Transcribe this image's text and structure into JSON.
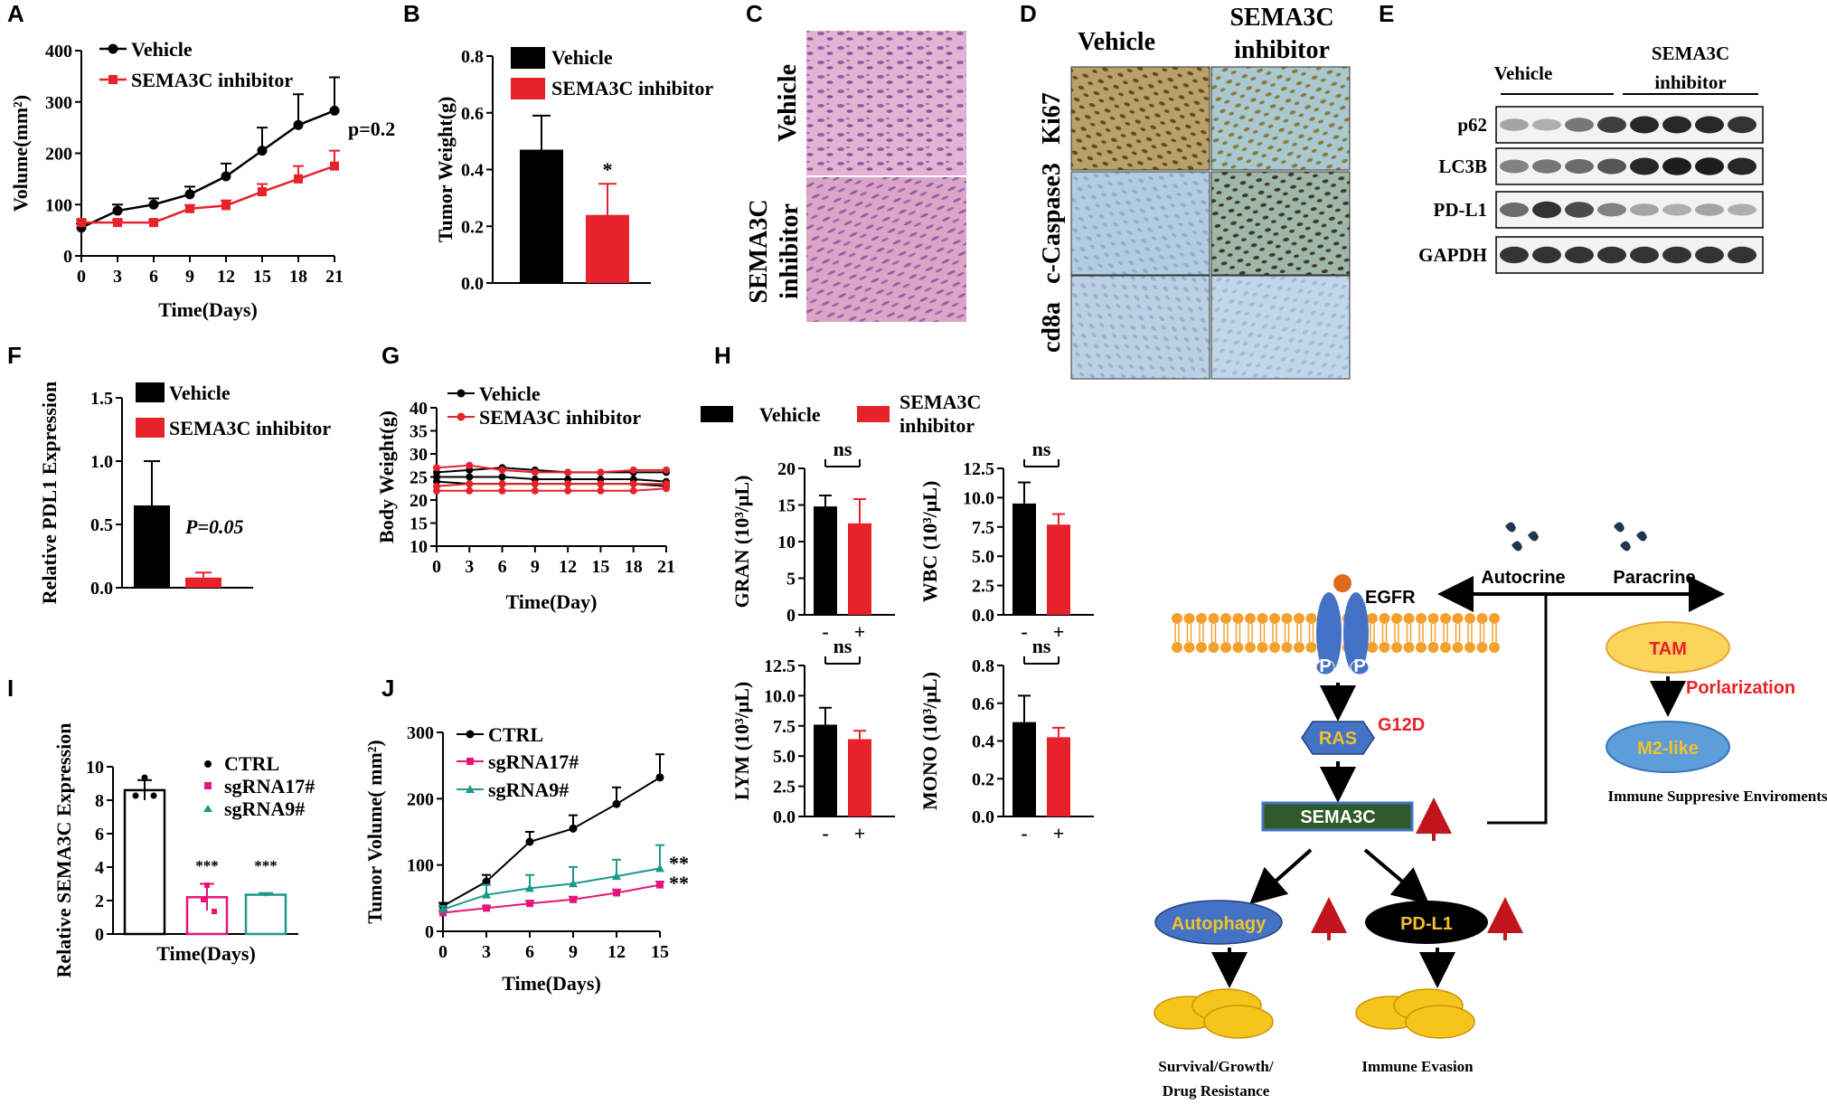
{
  "colors": {
    "black": "#000000",
    "red": "#e8222b",
    "pink": "#e5157a",
    "teal": "#1a9a8a",
    "blue": "#4472c4",
    "orange": "#f4a02e",
    "yellow": "#f2c12e",
    "green_dark": "#2f5b2a",
    "arrow_red": "#c0161b"
  },
  "panel_labels": [
    "A",
    "B",
    "C",
    "D",
    "E",
    "F",
    "G",
    "H",
    "I",
    "J"
  ],
  "chart_data": [
    {
      "id": "A",
      "type": "line",
      "xlabel": "Time(Days)",
      "ylabel": "Volume(mm²)",
      "x": [
        0,
        3,
        6,
        9,
        12,
        15,
        18,
        21
      ],
      "xlim": [
        0,
        21
      ],
      "ylim": [
        0,
        400
      ],
      "yticks": [
        0,
        100,
        200,
        300,
        400
      ],
      "series": [
        {
          "name": "Vehicle",
          "color": "black",
          "values": [
            55,
            88,
            100,
            120,
            155,
            205,
            255,
            283
          ],
          "err": [
            8,
            12,
            12,
            15,
            25,
            45,
            60,
            65
          ]
        },
        {
          "name": "SEMA3C inhibitor",
          "color": "red",
          "values": [
            65,
            65,
            65,
            92,
            98,
            125,
            150,
            175
          ],
          "err": [
            5,
            5,
            5,
            7,
            10,
            15,
            25,
            30
          ]
        }
      ],
      "annotation": "p=0.2"
    },
    {
      "id": "B",
      "type": "bar",
      "ylabel": "Tumor Weight(g)",
      "ylim": [
        0,
        0.8
      ],
      "yticks": [
        "0.0",
        "0.2",
        "0.4",
        "0.6",
        "0.8"
      ],
      "categories": [
        "Vehicle",
        "SEMA3C inhibitor"
      ],
      "values": [
        0.47,
        0.24
      ],
      "err": [
        0.12,
        0.11
      ],
      "colors": [
        "black",
        "red"
      ],
      "annotation": "*"
    },
    {
      "id": "F",
      "type": "bar",
      "ylabel": "Relative PDL1 Expression",
      "ylim": [
        0,
        1.5
      ],
      "yticks": [
        "0.0",
        "0.5",
        "1.0",
        "1.5"
      ],
      "categories": [
        "Vehicle",
        "SEMA3C inhibitor"
      ],
      "values": [
        0.65,
        0.08
      ],
      "err": [
        0.35,
        0.04
      ],
      "colors": [
        "black",
        "red"
      ],
      "annotation": "P=0.05"
    },
    {
      "id": "G",
      "type": "line",
      "xlabel": "Time(Day)",
      "ylabel": "Body Weight(g)",
      "x": [
        0,
        3,
        6,
        9,
        12,
        15,
        18,
        21
      ],
      "xlim": [
        0,
        21
      ],
      "ylim": [
        10,
        40
      ],
      "yticks": [
        10,
        15,
        20,
        25,
        30,
        35,
        40
      ],
      "series": [
        {
          "name": "Vehicle",
          "color": "black",
          "values": [
            26,
            26.5,
            27,
            26.5,
            26,
            26,
            26,
            26
          ]
        },
        {
          "name": "Vehicle",
          "color": "black",
          "values": [
            25,
            25,
            25,
            24.5,
            24.5,
            24.5,
            24.5,
            24
          ]
        },
        {
          "name": "Vehicle",
          "color": "black",
          "values": [
            24,
            23.5,
            23.5,
            23.5,
            23.5,
            23.5,
            23.5,
            23
          ]
        },
        {
          "name": "SEMA3C inhibitor",
          "color": "red",
          "values": [
            27,
            27.5,
            26.5,
            26,
            26,
            26,
            26.5,
            26.5
          ]
        },
        {
          "name": "SEMA3C inhibitor",
          "color": "red",
          "values": [
            23,
            23.5,
            23.5,
            23.5,
            23.5,
            23.5,
            23.5,
            23.5
          ]
        },
        {
          "name": "SEMA3C inhibitor",
          "color": "red",
          "values": [
            22,
            22,
            22,
            22,
            22,
            22,
            22,
            22.5
          ]
        }
      ]
    },
    {
      "id": "H-GRAN",
      "type": "bar",
      "ylabel": "GRAN (10³/μL)",
      "ylim": [
        0,
        20
      ],
      "yticks": [
        0,
        5,
        10,
        15,
        20
      ],
      "categories": [
        "-",
        "+"
      ],
      "values": [
        14.8,
        12.5
      ],
      "err": [
        1.5,
        3.3
      ],
      "annotation": "ns"
    },
    {
      "id": "H-WBC",
      "type": "bar",
      "ylabel": "WBC (10³/μL)",
      "ylim": [
        0,
        12.5
      ],
      "yticks": [
        "0.0",
        "2.5",
        "5.0",
        "7.5",
        "10.0",
        "12.5"
      ],
      "categories": [
        "-",
        "+"
      ],
      "values": [
        9.5,
        7.7
      ],
      "err": [
        1.8,
        0.9
      ],
      "annotation": "ns"
    },
    {
      "id": "H-LYM",
      "type": "bar",
      "ylabel": "LYM (10³/μL)",
      "ylim": [
        0,
        12.5
      ],
      "yticks": [
        "0.0",
        "2.5",
        "5.0",
        "7.5",
        "10.0",
        "12.5"
      ],
      "categories": [
        "-",
        "+"
      ],
      "values": [
        7.6,
        6.4
      ],
      "err": [
        1.4,
        0.7
      ],
      "annotation": "ns"
    },
    {
      "id": "H-MONO",
      "type": "bar",
      "ylabel": "MONO (10³/μL)",
      "ylim": [
        0,
        0.8
      ],
      "yticks": [
        "0.0",
        "0.2",
        "0.4",
        "0.6",
        "0.8"
      ],
      "categories": [
        "-",
        "+"
      ],
      "values": [
        0.5,
        0.42
      ],
      "err": [
        0.14,
        0.05
      ],
      "annotation": "ns"
    },
    {
      "id": "I",
      "type": "bar",
      "xlabel": "Time(Days)",
      "ylabel": "Relative SEMA3C Expression",
      "ylim": [
        0,
        10
      ],
      "yticks": [
        0,
        2,
        4,
        6,
        8,
        10
      ],
      "categories": [
        "CTRL",
        "sgRNA17#",
        "sgRNA9#"
      ],
      "values": [
        8.6,
        2.2,
        2.35
      ],
      "err": [
        0.6,
        0.8,
        0.1
      ],
      "annotation": "***"
    },
    {
      "id": "J",
      "type": "line",
      "xlabel": "Time(Days)",
      "ylabel": "Tumor Volume( mm²)",
      "x": [
        0,
        3,
        6,
        9,
        12,
        15
      ],
      "xlim": [
        0,
        15
      ],
      "ylim": [
        0,
        300
      ],
      "yticks": [
        0,
        100,
        200,
        300
      ],
      "series": [
        {
          "name": "CTRL",
          "color": "black",
          "values": [
            38,
            75,
            135,
            155,
            192,
            232
          ],
          "err": [
            5,
            10,
            15,
            20,
            25,
            35
          ]
        },
        {
          "name": "sgRNA17#",
          "color": "pink",
          "values": [
            28,
            35,
            42,
            48,
            58,
            70
          ],
          "err": [
            3,
            3,
            4,
            4,
            5,
            5
          ]
        },
        {
          "name": "sgRNA9#",
          "color": "teal",
          "values": [
            33,
            55,
            65,
            72,
            83,
            95
          ],
          "err": [
            5,
            15,
            20,
            25,
            25,
            35
          ]
        }
      ],
      "annotation": "**"
    }
  ],
  "legend": {
    "vehicle": "Vehicle",
    "inhibitor": "SEMA3C inhibitor",
    "semac_a": "SEMA3C",
    "inhibitor_word": "inhibitor",
    "ctrl": "CTRL",
    "sg17": "sgRNA17#",
    "sg9": "sgRNA9#"
  },
  "panelC": {
    "row1": "Vehicle",
    "row2_a": "SEMA3C",
    "row2_b": "inhibitor"
  },
  "panelD": {
    "col1": "Vehicle",
    "col2_a": "SEMA3C",
    "col2_b": "inhibitor",
    "rows": [
      "Ki67",
      "c-Caspase3",
      "cd8a"
    ]
  },
  "panelE": {
    "group1": "Vehicle",
    "group2_a": "SEMA3C",
    "group2_b": "inhibitor",
    "blots": [
      "p62",
      "LC3B",
      "PD-L1",
      "GAPDH"
    ]
  },
  "diagram": {
    "autocrine": "Autocrine",
    "paracrine": "Paracrine",
    "egfr": "EGFR",
    "p": "P",
    "ras": "RAS",
    "g12d": "G12D",
    "sema3c": "SEMA3C",
    "tam": "TAM",
    "polarization": "Porlarization",
    "m2": "M2-like",
    "env": "Immune Suppresive Enviroments",
    "autophagy": "Autophagy",
    "pdl1": "PD-L1",
    "survival_a": "Survival/Growth/",
    "survival_b": "Drug Resistance",
    "evasion": "Immune Evasion"
  }
}
